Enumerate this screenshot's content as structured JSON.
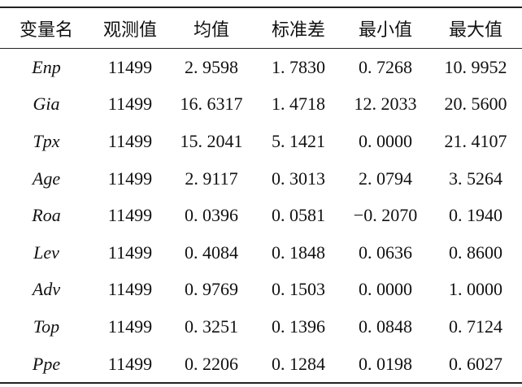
{
  "table": {
    "header": [
      "变量名",
      "观测值",
      "均值",
      "标准差",
      "最小值",
      "最大值"
    ],
    "rows": [
      [
        "Enp",
        "11499",
        "2. 9598",
        "1. 7830",
        "0. 7268",
        "10. 9952"
      ],
      [
        "Gia",
        "11499",
        "16. 6317",
        "1. 4718",
        "12. 2033",
        "20. 5600"
      ],
      [
        "Tpx",
        "11499",
        "15. 2041",
        "5. 1421",
        "0. 0000",
        "21. 4107"
      ],
      [
        "Age",
        "11499",
        "2. 9117",
        "0. 3013",
        "2. 0794",
        "3. 5264"
      ],
      [
        "Roa",
        "11499",
        "0. 0396",
        "0. 0581",
        "−0. 2070",
        "0. 1940"
      ],
      [
        "Lev",
        "11499",
        "0. 4084",
        "0. 1848",
        "0. 0636",
        "0. 8600"
      ],
      [
        "Adv",
        "11499",
        "0. 9769",
        "0. 1503",
        "0. 0000",
        "1. 0000"
      ],
      [
        "Top",
        "11499",
        "0. 3251",
        "0. 1396",
        "0. 0848",
        "0. 7124"
      ],
      [
        "Ppe",
        "11499",
        "0. 2206",
        "0. 1284",
        "0. 0198",
        "0. 6027"
      ]
    ]
  }
}
